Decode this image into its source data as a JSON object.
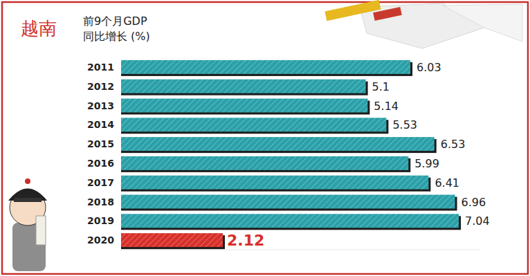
{
  "chart_data": {
    "type": "bar",
    "orientation": "horizontal",
    "title": "前9个月GDP",
    "subtitle": "同比增长 (%)",
    "annotations": [
      "越南"
    ],
    "categories": [
      "2011",
      "2012",
      "2013",
      "2014",
      "2015",
      "2016",
      "2017",
      "2018",
      "2019",
      "2020"
    ],
    "values": [
      6.03,
      5.1,
      5.14,
      5.53,
      6.53,
      5.99,
      6.41,
      6.96,
      7.04,
      2.12
    ],
    "colors": [
      "#2aa0a8",
      "#2aa0a8",
      "#2aa0a8",
      "#2aa0a8",
      "#2aa0a8",
      "#2aa0a8",
      "#2aa0a8",
      "#2aa0a8",
      "#2aa0a8",
      "#d8302a"
    ],
    "xlim": [
      0,
      7.5
    ],
    "grid": false,
    "tick_labels": "y",
    "data_labels": true
  }
}
